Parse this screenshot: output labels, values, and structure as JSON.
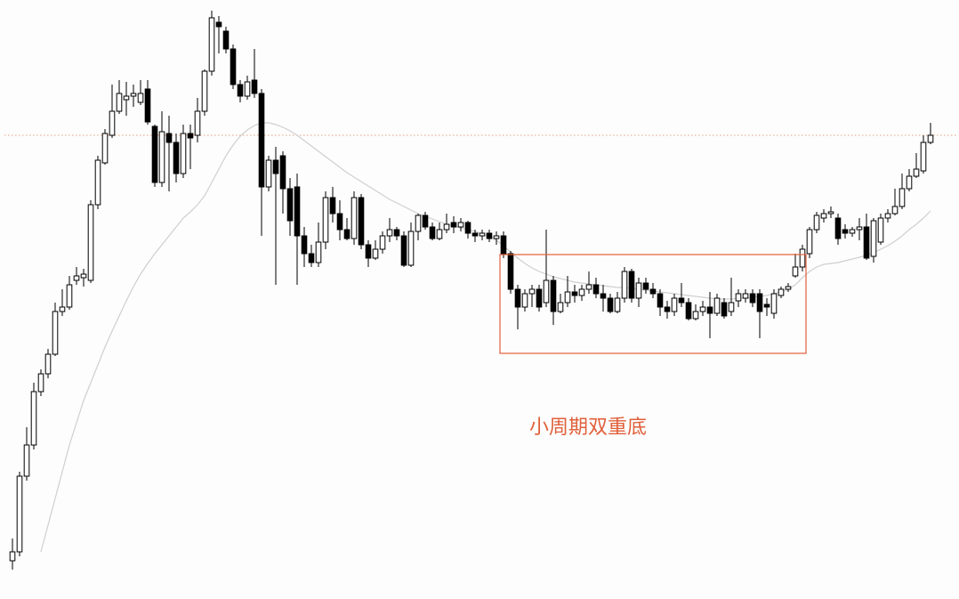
{
  "chart_data": {
    "type": "candlestick",
    "ylim": [
      0,
      673
    ],
    "up_color": "#ffffff",
    "down_color": "#000000",
    "outline_color": "#000000",
    "open": [
      43,
      53,
      138,
      173,
      233,
      253,
      275,
      323,
      328,
      358,
      361,
      358,
      443,
      490,
      521,
      548,
      561,
      565,
      558,
      573,
      531,
      468,
      523,
      513,
      478,
      523,
      521,
      548,
      593,
      648,
      638,
      618,
      578,
      565,
      583,
      568,
      463,
      493,
      498,
      461,
      463,
      408,
      388,
      378,
      401,
      451,
      433,
      415,
      405,
      451,
      398,
      383,
      393,
      408,
      415,
      408,
      375,
      413,
      431,
      418,
      405,
      415,
      423,
      418,
      423,
      411,
      408,
      411,
      405,
      408,
      388,
      348,
      328,
      343,
      348,
      333,
      358,
      323,
      333,
      345,
      341,
      348,
      353,
      343,
      338,
      323,
      338,
      368,
      338,
      355,
      348,
      343,
      328,
      323,
      338,
      333,
      315,
      323,
      328,
      321,
      333,
      323,
      335,
      338,
      343,
      343,
      331,
      321,
      341,
      348,
      363,
      373,
      388,
      415,
      428,
      433,
      428,
      415,
      411,
      415,
      418,
      385,
      401,
      428,
      433,
      441,
      461,
      475,
      481,
      513
    ],
    "high": [
      68,
      143,
      193,
      243,
      258,
      281,
      333,
      348,
      363,
      373,
      371,
      448,
      498,
      528,
      578,
      583,
      581,
      578,
      583,
      583,
      533,
      548,
      543,
      523,
      533,
      533,
      563,
      595,
      661,
      655,
      643,
      623,
      583,
      588,
      618,
      573,
      498,
      508,
      503,
      473,
      478,
      418,
      398,
      423,
      458,
      463,
      448,
      428,
      458,
      455,
      403,
      403,
      413,
      428,
      418,
      413,
      423,
      433,
      435,
      423,
      423,
      433,
      430,
      428,
      425,
      415,
      415,
      415,
      413,
      413,
      391,
      353,
      348,
      353,
      353,
      415,
      363,
      343,
      363,
      353,
      353,
      368,
      361,
      353,
      343,
      345,
      373,
      371,
      361,
      361,
      355,
      348,
      335,
      343,
      355,
      338,
      331,
      335,
      345,
      343,
      338,
      361,
      348,
      348,
      348,
      348,
      338,
      348,
      351,
      355,
      388,
      398,
      418,
      435,
      438,
      441,
      433,
      421,
      418,
      428,
      433,
      428,
      433,
      438,
      461,
      478,
      483,
      501,
      521,
      535
    ],
    "low": [
      33,
      48,
      133,
      168,
      228,
      248,
      273,
      318,
      325,
      353,
      351,
      355,
      438,
      488,
      518,
      545,
      543,
      553,
      555,
      533,
      463,
      463,
      458,
      468,
      473,
      483,
      513,
      543,
      588,
      613,
      613,
      573,
      558,
      561,
      563,
      408,
      458,
      353,
      433,
      408,
      353,
      373,
      373,
      373,
      393,
      423,
      403,
      403,
      398,
      393,
      373,
      381,
      388,
      401,
      403,
      373,
      373,
      403,
      415,
      403,
      403,
      411,
      411,
      413,
      405,
      401,
      403,
      401,
      398,
      383,
      343,
      303,
      323,
      328,
      323,
      328,
      308,
      321,
      328,
      333,
      335,
      343,
      338,
      323,
      321,
      321,
      333,
      333,
      328,
      343,
      338,
      318,
      315,
      318,
      328,
      313,
      313,
      318,
      293,
      318,
      315,
      318,
      328,
      333,
      328,
      293,
      318,
      315,
      338,
      345,
      361,
      368,
      383,
      411,
      423,
      428,
      398,
      405,
      407,
      403,
      381,
      378,
      398,
      423,
      431,
      438,
      458,
      473,
      478,
      511
    ],
    "close": [
      53,
      138,
      173,
      233,
      253,
      275,
      323,
      328,
      353,
      363,
      365,
      443,
      493,
      523,
      548,
      568,
      565,
      568,
      568,
      536,
      468,
      525,
      513,
      478,
      523,
      518,
      548,
      593,
      653,
      643,
      618,
      578,
      565,
      581,
      568,
      463,
      493,
      478,
      461,
      425,
      408,
      388,
      378,
      401,
      451,
      433,
      415,
      405,
      451,
      398,
      383,
      393,
      408,
      415,
      408,
      375,
      413,
      431,
      418,
      405,
      415,
      421,
      418,
      423,
      411,
      408,
      411,
      405,
      408,
      388,
      348,
      328,
      343,
      348,
      328,
      358,
      323,
      333,
      345,
      341,
      348,
      353,
      343,
      338,
      323,
      338,
      368,
      338,
      355,
      348,
      343,
      328,
      323,
      338,
      333,
      315,
      323,
      328,
      321,
      338,
      318,
      333,
      343,
      343,
      333,
      323,
      328,
      343,
      348,
      351,
      373,
      393,
      415,
      431,
      433,
      435,
      405,
      411,
      415,
      418,
      383,
      425,
      428,
      433,
      441,
      461,
      475,
      483,
      513,
      521
    ],
    "moving_average": {
      "color": "#cfcfcf",
      "values": [
        null,
        null,
        null,
        null,
        53,
        83,
        113,
        143,
        173,
        198,
        223,
        243,
        263,
        283,
        301,
        318,
        335,
        351,
        365,
        377,
        388,
        398,
        408,
        418,
        428,
        435,
        443,
        453,
        468,
        483,
        498,
        510,
        520,
        527,
        532,
        535,
        535,
        533,
        530,
        526,
        521,
        515,
        509,
        503,
        497,
        491,
        485,
        479,
        474,
        469,
        464,
        459,
        454,
        449,
        445,
        441,
        437,
        433,
        430,
        427,
        424,
        421,
        419,
        417,
        415,
        413,
        410,
        407,
        403,
        397,
        390,
        383,
        377,
        372,
        368,
        365,
        362,
        360,
        358,
        356,
        355,
        354,
        353,
        352,
        351,
        350,
        350,
        349,
        348,
        347,
        346,
        345,
        344,
        343,
        342,
        341,
        340,
        339,
        338,
        337,
        337,
        337,
        338,
        338,
        339,
        340,
        341,
        343,
        345,
        348,
        353,
        361,
        368,
        373,
        376,
        377,
        378,
        380,
        382,
        384,
        386,
        389,
        393,
        397,
        402,
        408,
        415,
        421,
        428,
        436
      ]
    },
    "reference_line": {
      "value": 521,
      "color": "#e8a07a"
    },
    "highlight": {
      "label": "小周期双重底",
      "from": 69,
      "to": 111,
      "low": 276,
      "high": 387,
      "color": "#e0603a"
    }
  }
}
